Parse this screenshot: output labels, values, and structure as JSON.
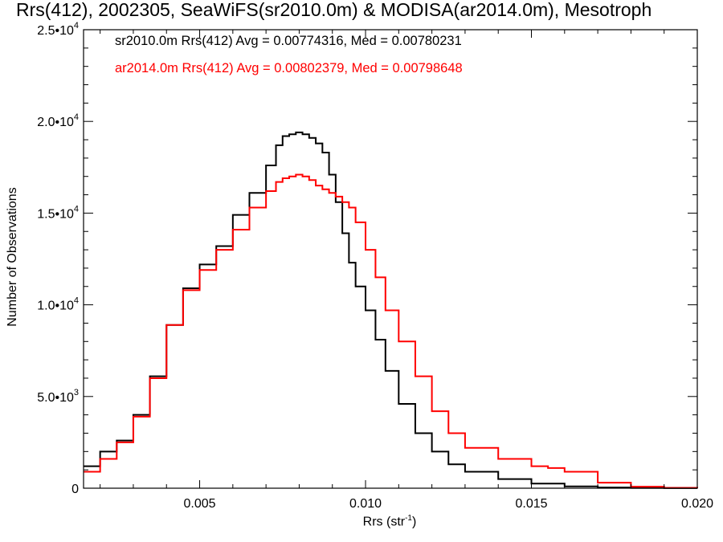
{
  "title": "Rrs(412), 2002305, SeaWiFS(sr2010.0m) & MODISA(ar2014.0m), Mesotroph",
  "stats": [
    {
      "text": "sr2010.0m Rrs(412) Avg = 0.00774316, Med = 0.00780231",
      "color": "#000000"
    },
    {
      "text": "ar2014.0m Rrs(412) Avg = 0.00802379, Med = 0.00798648",
      "color": "#ff0000"
    }
  ],
  "axes": {
    "xlabel_main": "Rrs (str",
    "xlabel_sup": "-1",
    "xlabel_end": ")",
    "ylabel": "Number of Observations",
    "xticks": [
      "0.005",
      "0.010",
      "0.015",
      "0.020"
    ],
    "yticks": [
      {
        "mantissa": "0",
        "exp": ""
      },
      {
        "mantissa": "5.0•10",
        "exp": "3"
      },
      {
        "mantissa": "1.0•10",
        "exp": "4"
      },
      {
        "mantissa": "1.5•10",
        "exp": "4"
      },
      {
        "mantissa": "2.0•10",
        "exp": "4"
      },
      {
        "mantissa": "2.5•10",
        "exp": "4"
      }
    ]
  },
  "chart_data": {
    "type": "line",
    "xlim": [
      0.0015,
      0.02
    ],
    "ylim": [
      0,
      25000
    ],
    "xticks": [
      0.005,
      0.01,
      0.015,
      0.02
    ],
    "yticks": [
      0,
      5000,
      10000,
      15000,
      20000,
      25000
    ],
    "grid": false,
    "series": [
      {
        "name": "sr2010.0m",
        "color": "#000000",
        "x": [
          0.0015,
          0.002,
          0.0025,
          0.003,
          0.0035,
          0.004,
          0.0045,
          0.005,
          0.0055,
          0.006,
          0.0065,
          0.007,
          0.0073,
          0.0075,
          0.0077,
          0.0079,
          0.0081,
          0.0083,
          0.0085,
          0.0087,
          0.0089,
          0.0091,
          0.0093,
          0.0095,
          0.0097,
          0.01,
          0.0103,
          0.0106,
          0.011,
          0.0115,
          0.012,
          0.0125,
          0.013,
          0.014,
          0.015,
          0.016,
          0.017,
          0.018,
          0.019,
          0.02
        ],
        "y": [
          1200,
          2000,
          2600,
          4000,
          6100,
          8900,
          10900,
          12200,
          13200,
          14900,
          16100,
          17600,
          18700,
          19200,
          19300,
          19400,
          19300,
          19100,
          18800,
          18300,
          17100,
          15600,
          13900,
          12300,
          11000,
          9700,
          8100,
          6400,
          4600,
          3000,
          2000,
          1300,
          900,
          500,
          250,
          100,
          40,
          15,
          5,
          0
        ]
      },
      {
        "name": "ar2014.0m",
        "color": "#ff0000",
        "x": [
          0.0015,
          0.002,
          0.0025,
          0.003,
          0.0035,
          0.004,
          0.0045,
          0.005,
          0.0055,
          0.006,
          0.0065,
          0.007,
          0.0073,
          0.0075,
          0.0077,
          0.0079,
          0.0081,
          0.0083,
          0.0085,
          0.0087,
          0.0089,
          0.0091,
          0.0093,
          0.0095,
          0.0097,
          0.01,
          0.0103,
          0.0106,
          0.011,
          0.0115,
          0.012,
          0.0125,
          0.013,
          0.014,
          0.015,
          0.0155,
          0.016,
          0.017,
          0.018,
          0.019,
          0.02
        ],
        "y": [
          900,
          1600,
          2500,
          3900,
          6000,
          8900,
          10800,
          11900,
          13000,
          14100,
          15300,
          16200,
          16700,
          16900,
          17000,
          17100,
          17000,
          16800,
          16500,
          16300,
          16100,
          15900,
          15600,
          15300,
          14500,
          13000,
          11500,
          9700,
          8000,
          6100,
          4200,
          3000,
          2200,
          1600,
          1200,
          1100,
          900,
          300,
          80,
          20,
          0
        ]
      }
    ]
  }
}
